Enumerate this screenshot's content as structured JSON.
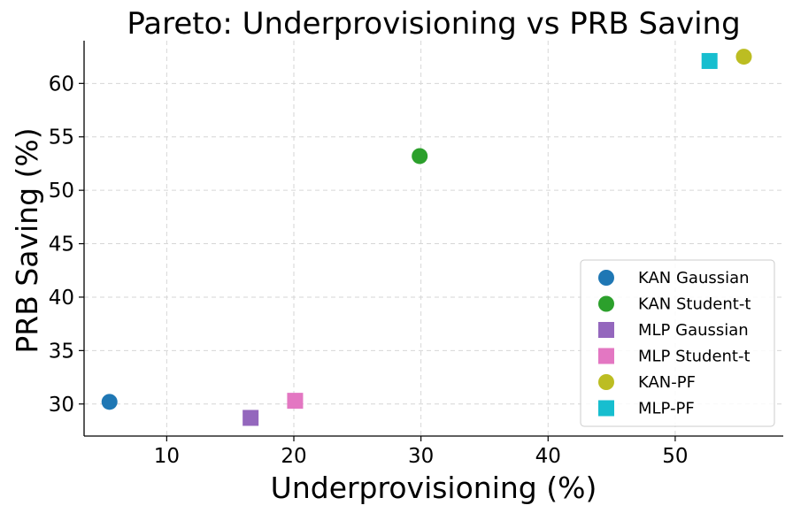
{
  "chart_data": {
    "type": "scatter",
    "title": "Pareto: Underprovisioning vs PRB Saving",
    "xlabel": "Underprovisioning (%)",
    "ylabel": "PRB Saving (%)",
    "xlim": [
      3.5,
      58.5
    ],
    "ylim": [
      27,
      64
    ],
    "xticks": [
      10,
      20,
      30,
      40,
      50
    ],
    "yticks": [
      30,
      35,
      40,
      45,
      50,
      55,
      60
    ],
    "grid": true,
    "legend_position": "lower-right",
    "series": [
      {
        "name": "KAN Gaussian",
        "marker": "circle",
        "color": "#1f77b4",
        "x": 5.5,
        "y": 30.2
      },
      {
        "name": "KAN Student-t",
        "marker": "circle",
        "color": "#2ca02c",
        "x": 29.9,
        "y": 53.2
      },
      {
        "name": "MLP Gaussian",
        "marker": "square",
        "color": "#9467bd",
        "x": 16.6,
        "y": 28.7
      },
      {
        "name": "MLP Student-t",
        "marker": "square",
        "color": "#e377c2",
        "x": 20.1,
        "y": 30.3
      },
      {
        "name": "KAN-PF",
        "marker": "circle",
        "color": "#bcbd22",
        "x": 55.4,
        "y": 62.5
      },
      {
        "name": "MLP-PF",
        "marker": "square",
        "color": "#17becf",
        "x": 52.7,
        "y": 62.1
      }
    ]
  }
}
